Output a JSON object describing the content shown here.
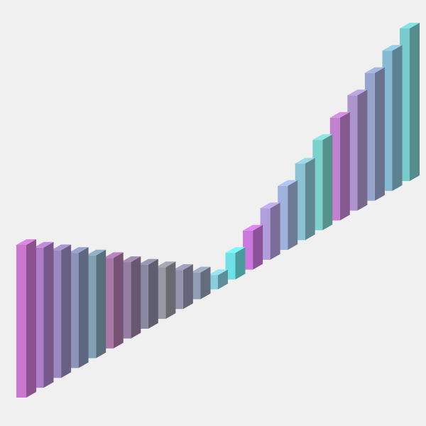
{
  "chart_data": {
    "type": "bar3d",
    "title": "",
    "xlabel": "",
    "ylabel": "",
    "zlabel": "",
    "grid": false,
    "legend": false,
    "axes_visible": false,
    "background": "#f0f0f0",
    "ylim": [
      -1,
      1
    ],
    "bars": [
      {
        "index": 0,
        "value": -1.0,
        "color": "#e184e7"
      },
      {
        "index": 1,
        "value": -0.91,
        "color": "#c08cdd"
      },
      {
        "index": 2,
        "value": -0.82,
        "color": "#ab97d4"
      },
      {
        "index": 3,
        "value": -0.73,
        "color": "#9aa5cf"
      },
      {
        "index": 4,
        "value": -0.64,
        "color": "#8fb2c6"
      },
      {
        "index": 5,
        "value": -0.55,
        "color": "#bb86bb"
      },
      {
        "index": 6,
        "value": -0.45,
        "color": "#a68cb4"
      },
      {
        "index": 7,
        "value": -0.36,
        "color": "#9a98b4"
      },
      {
        "index": 8,
        "value": -0.27,
        "color": "#a9a9b4"
      },
      {
        "index": 9,
        "value": -0.18,
        "color": "#a3a3c0"
      },
      {
        "index": 10,
        "value": -0.09,
        "color": "#9fb0c7"
      },
      {
        "index": 11,
        "value": 0.0,
        "color": "#9ae4f7"
      },
      {
        "index": 12,
        "value": 0.09,
        "color": "#79fafc"
      },
      {
        "index": 13,
        "value": 0.18,
        "color": "#e185f7"
      },
      {
        "index": 14,
        "value": 0.27,
        "color": "#c6aef5"
      },
      {
        "index": 15,
        "value": 0.36,
        "color": "#b0c6f4"
      },
      {
        "index": 16,
        "value": 0.45,
        "color": "#9bd9ec"
      },
      {
        "index": 17,
        "value": 0.55,
        "color": "#8ae8e4"
      },
      {
        "index": 18,
        "value": 0.64,
        "color": "#d78fe5"
      },
      {
        "index": 19,
        "value": 0.73,
        "color": "#c0a6e2"
      },
      {
        "index": 20,
        "value": 0.82,
        "color": "#a7b7e3"
      },
      {
        "index": 21,
        "value": 0.91,
        "color": "#94d0e9"
      },
      {
        "index": 22,
        "value": 1.0,
        "color": "#86e3e5"
      }
    ]
  }
}
